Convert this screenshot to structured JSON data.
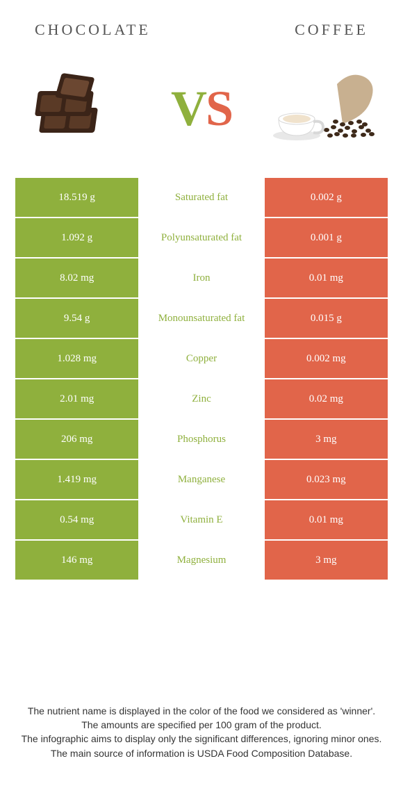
{
  "colors": {
    "left_bg": "#8fb03d",
    "mid_bg": "#ffffff",
    "right_bg": "#e1654a",
    "left_text": "#ffffff",
    "right_text": "#ffffff",
    "label_winner_left": "#8fb03d",
    "label_winner_right": "#e1654a",
    "vs_v": "#8fb03d",
    "vs_s": "#e1654a",
    "header_text": "#555555"
  },
  "header": {
    "left": "CHOCOLATE",
    "right": "COFFEE"
  },
  "vs": {
    "v": "V",
    "s": "S"
  },
  "rows": [
    {
      "left": "18.519 g",
      "label": "Saturated fat",
      "right": "0.002 g",
      "winner": "left"
    },
    {
      "left": "1.092 g",
      "label": "Polyunsaturated fat",
      "right": "0.001 g",
      "winner": "left"
    },
    {
      "left": "8.02 mg",
      "label": "Iron",
      "right": "0.01 mg",
      "winner": "left"
    },
    {
      "left": "9.54 g",
      "label": "Monounsaturated fat",
      "right": "0.015 g",
      "winner": "left"
    },
    {
      "left": "1.028 mg",
      "label": "Copper",
      "right": "0.002 mg",
      "winner": "left"
    },
    {
      "left": "2.01 mg",
      "label": "Zinc",
      "right": "0.02 mg",
      "winner": "left"
    },
    {
      "left": "206 mg",
      "label": "Phosphorus",
      "right": "3 mg",
      "winner": "left"
    },
    {
      "left": "1.419 mg",
      "label": "Manganese",
      "right": "0.023 mg",
      "winner": "left"
    },
    {
      "left": "0.54 mg",
      "label": "Vitamin E",
      "right": "0.01 mg",
      "winner": "left"
    },
    {
      "left": "146 mg",
      "label": "Magnesium",
      "right": "3 mg",
      "winner": "left"
    }
  ],
  "footer": [
    "The nutrient name is displayed in the color of the food we considered as 'winner'.",
    "The amounts are specified per 100 gram of the product.",
    "The infographic aims to display only the significant differences, ignoring minor ones.",
    "The main source of information is USDA Food Composition Database."
  ]
}
